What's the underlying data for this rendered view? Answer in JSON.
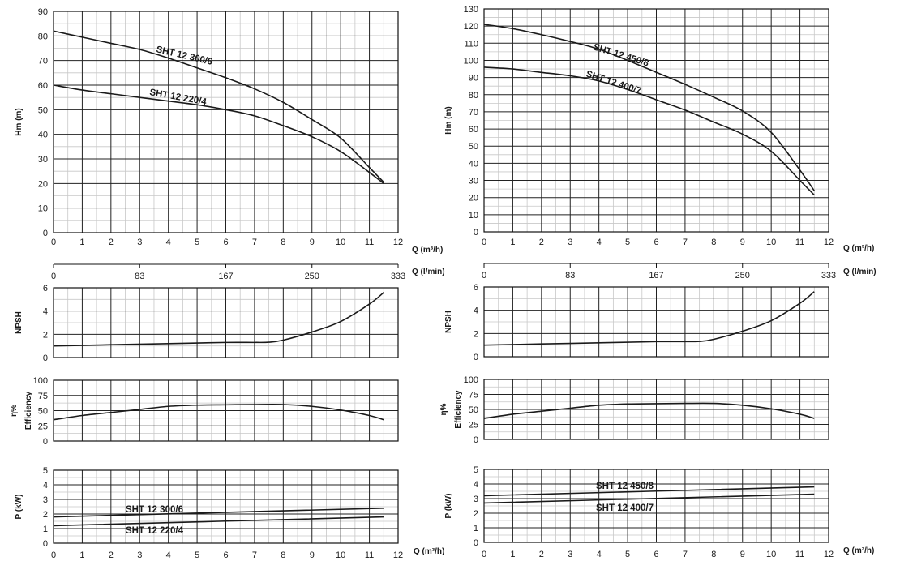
{
  "chart_data": [
    {
      "type": "line",
      "panel": "left-head",
      "ylabel": "Hm (m)",
      "xlabel": "Q (m³/h)",
      "xlim": [
        0,
        12
      ],
      "ylim": [
        0,
        90
      ],
      "xticks": [
        "0",
        "1",
        "2",
        "3",
        "4",
        "5",
        "6",
        "7",
        "8",
        "9",
        "10",
        "11",
        "12"
      ],
      "yticks": [
        "0",
        "10",
        "20",
        "30",
        "40",
        "50",
        "60",
        "70",
        "80",
        "90"
      ],
      "grid": true,
      "series": [
        {
          "name": "SHT 12 300/6",
          "x": [
            0,
            1,
            2,
            3,
            4,
            5,
            6,
            7,
            8,
            9,
            10,
            11,
            11.5
          ],
          "y": [
            82,
            79.5,
            77,
            74.5,
            71,
            67,
            63,
            58.5,
            53,
            46,
            38.5,
            26.5,
            20.5
          ]
        },
        {
          "name": "SHT 12 220/4",
          "x": [
            0,
            1,
            2,
            3,
            4,
            5,
            6,
            7,
            8,
            9,
            10,
            11,
            11.5
          ],
          "y": [
            60,
            58,
            56.5,
            55,
            53.5,
            52,
            50,
            47.5,
            43.5,
            39,
            33,
            24.5,
            20
          ]
        }
      ],
      "secondary_axis": {
        "label": "Q (l/min)",
        "ticks": [
          "0",
          "83",
          "167",
          "250",
          "333"
        ]
      }
    },
    {
      "type": "line",
      "panel": "right-head",
      "ylabel": "Hm (m)",
      "xlabel": "Q (m³/h)",
      "xlim": [
        0,
        12
      ],
      "ylim": [
        0,
        130
      ],
      "xticks": [
        "0",
        "1",
        "2",
        "3",
        "4",
        "5",
        "6",
        "7",
        "8",
        "9",
        "10",
        "11",
        "12"
      ],
      "yticks": [
        "0",
        "10",
        "20",
        "30",
        "40",
        "50",
        "60",
        "70",
        "80",
        "90",
        "100",
        "110",
        "120",
        "130"
      ],
      "grid": true,
      "series": [
        {
          "name": "SHT 12 450/8",
          "x": [
            0,
            1,
            2,
            3,
            4,
            5,
            6,
            7,
            8,
            9,
            10,
            11,
            11.5
          ],
          "y": [
            121,
            118.5,
            115,
            111,
            106.5,
            100,
            93,
            86,
            78.5,
            70.5,
            58,
            36,
            24
          ]
        },
        {
          "name": "SHT 12 400/7",
          "x": [
            0,
            1,
            2,
            3,
            4,
            5,
            6,
            7,
            8,
            9,
            10,
            11,
            11.5
          ],
          "y": [
            96,
            95,
            93,
            91,
            88,
            83,
            77,
            71,
            64,
            57,
            47,
            30,
            21.5
          ]
        }
      ],
      "secondary_axis": {
        "label": "Q (l/min)",
        "ticks": [
          "0",
          "83",
          "167",
          "250",
          "333"
        ]
      }
    },
    {
      "type": "line",
      "panel": "left-npsh",
      "ylabel": "NPSH",
      "xlim": [
        0,
        12
      ],
      "ylim": [
        0,
        6
      ],
      "yticks": [
        "0",
        "2",
        "4",
        "6"
      ],
      "grid": true,
      "series": [
        {
          "name": "",
          "x": [
            0,
            2,
            4,
            6,
            7,
            7.5,
            8,
            9,
            10,
            11,
            11.5
          ],
          "y": [
            1.0,
            1.1,
            1.2,
            1.3,
            1.3,
            1.32,
            1.5,
            2.2,
            3.1,
            4.6,
            5.6
          ]
        }
      ]
    },
    {
      "type": "line",
      "panel": "right-npsh",
      "ylabel": "NPSH",
      "xlim": [
        0,
        12
      ],
      "ylim": [
        0,
        6
      ],
      "yticks": [
        "0",
        "2",
        "4",
        "6"
      ],
      "grid": true,
      "series": [
        {
          "name": "",
          "x": [
            0,
            2,
            4,
            6,
            7,
            7.5,
            8,
            9,
            10,
            11,
            11.5
          ],
          "y": [
            1.0,
            1.1,
            1.2,
            1.3,
            1.3,
            1.32,
            1.5,
            2.2,
            3.1,
            4.6,
            5.6
          ]
        }
      ]
    },
    {
      "type": "line",
      "panel": "left-eff",
      "ylabel": "η% Efficiency",
      "ylabel_lines": [
        "η%",
        "Efficiency"
      ],
      "xlim": [
        0,
        12
      ],
      "ylim": [
        0,
        100
      ],
      "yticks": [
        "0",
        "25",
        "50",
        "75",
        "100"
      ],
      "grid": true,
      "series": [
        {
          "name": "",
          "x": [
            0,
            1,
            2,
            3,
            4,
            5,
            6,
            7,
            8,
            9,
            10,
            11,
            11.5
          ],
          "y": [
            35,
            42,
            47,
            52,
            57,
            59,
            59.5,
            60,
            60,
            57,
            51,
            42,
            35
          ]
        }
      ]
    },
    {
      "type": "line",
      "panel": "right-eff",
      "ylabel": "η% Efficiency",
      "ylabel_lines": [
        "η%",
        "Efficiency"
      ],
      "xlim": [
        0,
        12
      ],
      "ylim": [
        0,
        100
      ],
      "yticks": [
        "0",
        "25",
        "50",
        "75",
        "100"
      ],
      "grid": true,
      "series": [
        {
          "name": "",
          "x": [
            0,
            1,
            2,
            3,
            4,
            5,
            6,
            7,
            8,
            9,
            10,
            11,
            11.5
          ],
          "y": [
            35,
            42,
            47,
            52,
            57,
            59,
            59.5,
            60,
            60,
            57,
            51,
            42,
            35
          ]
        }
      ]
    },
    {
      "type": "line",
      "panel": "left-power",
      "ylabel": "P (kW)",
      "xlabel": "Q (m³/h)",
      "xlim": [
        0,
        12
      ],
      "ylim": [
        0,
        5
      ],
      "xticks": [
        "0",
        "1",
        "2",
        "3",
        "4",
        "5",
        "6",
        "7",
        "8",
        "9",
        "10",
        "11",
        "12"
      ],
      "yticks": [
        "0",
        "1",
        "2",
        "3",
        "4",
        "5"
      ],
      "grid": true,
      "series": [
        {
          "name": "SHT 12 300/6",
          "x": [
            0,
            11.5
          ],
          "y": [
            1.8,
            2.4
          ]
        },
        {
          "name": "SHT 12 220/4",
          "x": [
            0,
            11.5
          ],
          "y": [
            1.2,
            1.8
          ]
        }
      ]
    },
    {
      "type": "line",
      "panel": "right-power",
      "ylabel": "P (kW)",
      "xlabel": "Q (m³/h)",
      "xlim": [
        0,
        12
      ],
      "ylim": [
        0,
        5
      ],
      "xticks": [
        "0",
        "1",
        "2",
        "3",
        "4",
        "5",
        "6",
        "7",
        "8",
        "9",
        "10",
        "11",
        "12"
      ],
      "yticks": [
        "0",
        "1",
        "2",
        "3",
        "4",
        "5"
      ],
      "grid": true,
      "series": [
        {
          "name": "SHT 12 450/8",
          "x": [
            0,
            11.5
          ],
          "y": [
            3.2,
            3.8
          ]
        },
        {
          "name": "SHT 12 400/7",
          "x": [
            0,
            11.5
          ],
          "y": [
            2.7,
            3.3
          ]
        }
      ]
    }
  ]
}
